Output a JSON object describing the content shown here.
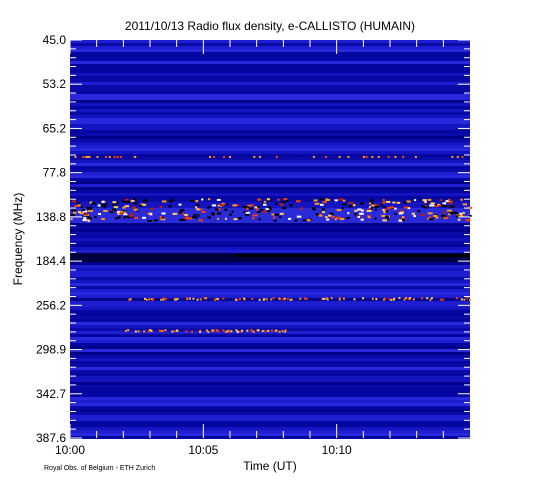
{
  "chart_data": {
    "type": "heatmap",
    "title": "2011/10/13  Radio flux density, e-CALLISTO (HUMAIN)",
    "xlabel": "Time (UT)",
    "ylabel": "Frequency (MHz)",
    "x_ticks": [
      {
        "label": "10:00",
        "minutes": 0
      },
      {
        "label": "10:05",
        "minutes": 5
      },
      {
        "label": "10:10",
        "minutes": 10
      }
    ],
    "xlim_minutes": [
      0,
      15
    ],
    "y_ticks": [
      "45.0",
      "53.2",
      "65.2",
      "77.8",
      "138.8",
      "184.4",
      "256.2",
      "298.9",
      "342.7",
      "387.6"
    ],
    "ylim": [
      45.0,
      387.6
    ],
    "colormap": [
      "#00008b",
      "#1010c8",
      "#2a2ad8",
      "#ff4000",
      "#ff9a20",
      "#ffd060",
      "#ffffff"
    ],
    "features": [
      {
        "frequency_mhz": 138.8,
        "description": "strong emission band",
        "intensity": "high"
      },
      {
        "frequency_mhz": 184.4,
        "description": "dark band",
        "intensity": "low"
      },
      {
        "frequency_mhz": 256.2,
        "description": "dotted emission",
        "intensity": "medium"
      },
      {
        "frequency_mhz": 77.8,
        "description": "sparse dots",
        "intensity": "medium"
      }
    ]
  },
  "footer": "Royal Obs. of Belgium - ETH Zurich"
}
